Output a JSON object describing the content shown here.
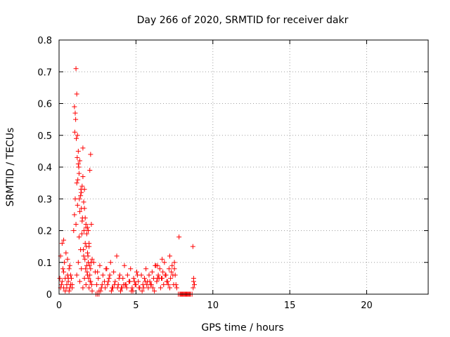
{
  "chart_data": {
    "type": "scatter",
    "title": "Day 266 of 2020, SRMTID for receiver dakr",
    "xlabel": "GPS time / hours",
    "ylabel": "SRMTID / TECUs",
    "xlim": [
      0,
      24
    ],
    "ylim": [
      0,
      0.8
    ],
    "xticks": [
      "0",
      "5",
      "10",
      "15",
      "20"
    ],
    "yticks": [
      "0",
      "0.1",
      "0.2",
      "0.3",
      "0.4",
      "0.5",
      "0.6",
      "0.7",
      "0.8"
    ],
    "grid": true,
    "marker": "+",
    "color": "#ff0000",
    "series": [
      {
        "name": "SRMTID",
        "x": [
          0.05,
          0.1,
          0.15,
          0.2,
          0.25,
          0.3,
          0.35,
          0.4,
          0.45,
          0.5,
          0.55,
          0.6,
          0.65,
          0.7,
          0.75,
          0.8,
          0.85,
          0.1,
          0.2,
          0.3,
          0.4,
          0.5,
          0.6,
          0.7,
          0.3,
          0.55,
          0.65,
          0.75,
          0.85,
          0.95,
          1.0,
          1.05,
          1.1,
          1.15,
          1.2,
          1.25,
          1.3,
          1.35,
          1.4,
          1.45,
          1.5,
          1.55,
          1.6,
          1.65,
          1.7,
          1.75,
          1.8,
          1.85,
          1.9,
          1.95,
          2.0,
          2.05,
          2.1,
          2.15,
          1.0,
          1.05,
          1.1,
          1.15,
          1.2,
          1.25,
          1.3,
          1.35,
          1.4,
          1.45,
          1.5,
          1.55,
          1.6,
          1.65,
          1.7,
          1.75,
          1.8,
          1.85,
          1.9,
          1.95,
          2.0,
          2.05,
          1.12,
          1.08,
          1.02,
          1.18,
          1.22,
          1.28,
          1.32,
          1.42,
          1.48,
          1.52,
          1.58,
          1.62,
          1.68,
          1.72,
          1.78,
          1.82,
          1.88,
          1.92,
          1.98,
          2.02,
          2.08,
          2.12,
          1.15,
          1.25,
          1.35,
          1.45,
          1.55,
          1.65,
          1.75,
          1.85,
          1.95,
          2.05,
          2.15,
          2.25,
          2.35,
          2.45,
          2.55,
          2.65,
          2.75,
          2.85,
          2.95,
          3.05,
          3.15,
          3.25,
          3.35,
          3.45,
          3.55,
          3.65,
          3.75,
          3.85,
          3.95,
          4.05,
          4.15,
          4.25,
          4.35,
          4.45,
          4.55,
          4.65,
          4.75,
          4.85,
          4.95,
          5.05,
          5.15,
          5.25,
          5.35,
          5.45,
          5.55,
          5.65,
          5.75,
          5.85,
          5.95,
          6.05,
          6.15,
          6.25,
          6.35,
          6.45,
          6.55,
          6.65,
          6.75,
          6.85,
          6.95,
          7.05,
          7.15,
          7.25,
          7.35,
          7.45,
          7.55,
          7.65,
          7.75,
          7.85,
          7.95,
          8.05,
          8.15,
          8.25,
          8.35,
          8.45,
          8.55,
          8.65,
          8.75,
          2.6,
          2.8,
          3.0,
          3.2,
          3.4,
          3.6,
          3.8,
          4.0,
          4.2,
          4.4,
          4.6,
          4.8,
          5.0,
          5.2,
          5.4,
          5.6,
          5.8,
          6.0,
          6.2,
          6.4,
          6.6,
          6.8,
          7.0,
          7.2,
          7.4,
          7.6,
          2.7,
          3.1,
          3.5,
          3.9,
          4.3,
          4.7,
          5.1,
          5.5,
          5.9,
          6.3,
          6.7,
          7.1,
          7.5,
          2.5,
          3.3,
          4.1,
          4.9,
          5.7,
          6.5,
          7.3,
          6.1,
          6.4,
          6.7,
          6.9,
          7.2,
          7.5,
          2.4,
          2.5,
          2.6,
          7.9,
          8.0,
          8.1,
          8.2,
          8.3,
          8.4,
          8.5,
          7.8,
          8.7,
          8.75,
          8.8,
          8.72
        ],
        "y": [
          0.05,
          0.12,
          0.03,
          0.16,
          0.08,
          0.02,
          0.1,
          0.05,
          0.13,
          0.02,
          0.06,
          0.04,
          0.01,
          0.09,
          0.03,
          0.05,
          0.02,
          0.02,
          0.04,
          0.07,
          0.01,
          0.03,
          0.05,
          0.02,
          0.17,
          0.11,
          0.08,
          0.06,
          0.03,
          0.2,
          0.59,
          0.57,
          0.71,
          0.63,
          0.5,
          0.45,
          0.38,
          0.42,
          0.31,
          0.27,
          0.34,
          0.46,
          0.29,
          0.33,
          0.24,
          0.22,
          0.19,
          0.21,
          0.2,
          0.16,
          0.39,
          0.44,
          0.22,
          0.11,
          0.25,
          0.3,
          0.22,
          0.35,
          0.28,
          0.41,
          0.18,
          0.26,
          0.14,
          0.32,
          0.23,
          0.37,
          0.12,
          0.27,
          0.16,
          0.21,
          0.09,
          0.13,
          0.1,
          0.15,
          0.06,
          0.08,
          0.49,
          0.55,
          0.51,
          0.43,
          0.36,
          0.4,
          0.3,
          0.33,
          0.19,
          0.24,
          0.14,
          0.2,
          0.11,
          0.08,
          0.15,
          0.07,
          0.12,
          0.05,
          0.09,
          0.04,
          0.1,
          0.03,
          0.06,
          0.1,
          0.04,
          0.08,
          0.02,
          0.05,
          0.03,
          0.06,
          0.02,
          0.04,
          0.01,
          0.1,
          0.07,
          0.03,
          0.05,
          0.09,
          0.02,
          0.06,
          0.04,
          0.08,
          0.03,
          0.05,
          0.1,
          0.02,
          0.07,
          0.04,
          0.12,
          0.03,
          0.06,
          0.02,
          0.05,
          0.09,
          0.03,
          0.06,
          0.04,
          0.08,
          0.02,
          0.05,
          0.03,
          0.07,
          0.04,
          0.02,
          0.06,
          0.03,
          0.05,
          0.08,
          0.04,
          0.06,
          0.03,
          0.07,
          0.05,
          0.09,
          0.04,
          0.06,
          0.08,
          0.05,
          0.07,
          0.1,
          0.06,
          0.04,
          0.08,
          0.05,
          0.09,
          0.03,
          0.06,
          0.02,
          0.0,
          0.0,
          0.0,
          0.0,
          0.0,
          0.0,
          0.0,
          0.0,
          0.0,
          0.0,
          0.04,
          0.01,
          0.03,
          0.02,
          0.04,
          0.01,
          0.03,
          0.02,
          0.01,
          0.03,
          0.02,
          0.04,
          0.01,
          0.03,
          0.02,
          0.01,
          0.04,
          0.02,
          0.03,
          0.01,
          0.05,
          0.02,
          0.03,
          0.04,
          0.02,
          0.06,
          0.03,
          0.01,
          0.08,
          0.02,
          0.05,
          0.03,
          0.01,
          0.06,
          0.02,
          0.04,
          0.09,
          0.05,
          0.03,
          0.1,
          0.07,
          0.06,
          0.02,
          0.04,
          0.03,
          0.05,
          0.07,
          0.02,
          0.09,
          0.11,
          0.06,
          0.12,
          0.08,
          0.0,
          0.0,
          0.0,
          0.0,
          0.0,
          0.0,
          0.0,
          0.0,
          0.0,
          0.0,
          0.18,
          0.15,
          0.05,
          0.03,
          0.02
        ]
      }
    ]
  }
}
